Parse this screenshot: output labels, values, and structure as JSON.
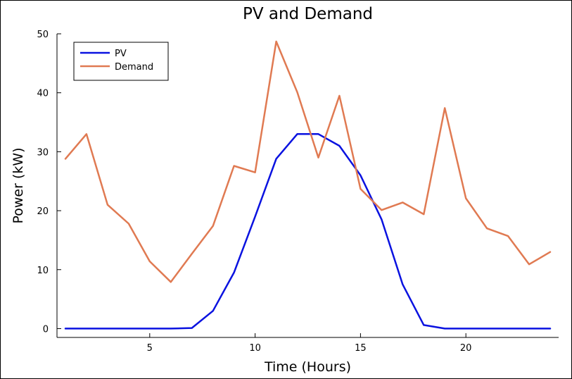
{
  "chart_data": {
    "type": "line",
    "title": "PV and Demand",
    "xlabel": "Time (Hours)",
    "ylabel": "Power (kW)",
    "xlim": [
      0.6,
      24.4
    ],
    "ylim": [
      -1.5,
      50
    ],
    "xticks": [
      5,
      10,
      15,
      20
    ],
    "yticks": [
      0,
      10,
      20,
      30,
      40,
      50
    ],
    "grid": false,
    "legend_position": "top-left",
    "x": [
      1,
      2,
      3,
      4,
      5,
      6,
      7,
      8,
      9,
      10,
      11,
      12,
      13,
      14,
      15,
      16,
      17,
      18,
      19,
      20,
      21,
      22,
      23,
      24
    ],
    "series": [
      {
        "name": "PV",
        "color": "#0a12e0",
        "values": [
          0,
          0,
          0,
          0,
          0,
          0,
          0.1,
          3,
          9.5,
          19,
          28.8,
          33,
          33,
          31,
          26,
          18.5,
          7.5,
          0.6,
          0,
          0,
          0,
          0,
          0,
          0
        ]
      },
      {
        "name": "Demand",
        "color": "#e07a52",
        "values": [
          28.8,
          33,
          21,
          17.8,
          11.4,
          7.9,
          12.7,
          17.4,
          27.6,
          26.5,
          48.7,
          40.1,
          29,
          39.5,
          23.7,
          20.1,
          21.4,
          19.4,
          37.4,
          22.1,
          17,
          15.7,
          10.9,
          13
        ]
      }
    ]
  }
}
